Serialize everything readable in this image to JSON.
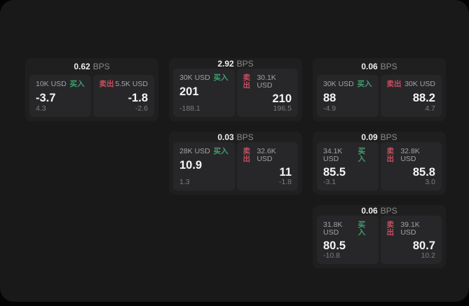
{
  "labels": {
    "bps_unit": "BPS",
    "buy": "买入",
    "sell": "卖出"
  },
  "colors": {
    "page_background": "#040404",
    "panel_background": "#19191a",
    "card_background": "#1f1f20",
    "tile_background": "#27272a",
    "buy_accent": "#3fa06d",
    "sell_accent": "#c94f5e",
    "price_text": "#f5f5f5",
    "muted_text": "#8a8a8a"
  },
  "cards": [
    {
      "bps": "0.62",
      "col": 1,
      "row": 1,
      "buy": {
        "notional": "10K USD",
        "price": "-3.7",
        "delta": "4.3"
      },
      "sell": {
        "notional": "5.5K USD",
        "price": "-1.8",
        "delta": "-2.6"
      }
    },
    {
      "bps": "2.92",
      "col": 2,
      "row": 1,
      "buy": {
        "notional": "30K USD",
        "price": "201",
        "delta": "-188.1"
      },
      "sell": {
        "notional": "30.1K USD",
        "price": "210",
        "delta": "196.5"
      }
    },
    {
      "bps": "0.06",
      "col": 3,
      "row": 1,
      "buy": {
        "notional": "30K USD",
        "price": "88",
        "delta": "-4.9"
      },
      "sell": {
        "notional": "30K USD",
        "price": "88.2",
        "delta": "4.7"
      }
    },
    {
      "bps": "0.03",
      "col": 2,
      "row": 2,
      "buy": {
        "notional": "28K USD",
        "price": "10.9",
        "delta": "1.3"
      },
      "sell": {
        "notional": "32.6K USD",
        "price": "11",
        "delta": "-1.8"
      }
    },
    {
      "bps": "0.09",
      "col": 3,
      "row": 2,
      "buy": {
        "notional": "34.1K USD",
        "price": "85.5",
        "delta": "-3.1"
      },
      "sell": {
        "notional": "32.8K USD",
        "price": "85.8",
        "delta": "3.0"
      }
    },
    {
      "bps": "0.06",
      "col": 3,
      "row": 3,
      "buy": {
        "notional": "31.8K USD",
        "price": "80.5",
        "delta": "-10.8"
      },
      "sell": {
        "notional": "39.1K USD",
        "price": "80.7",
        "delta": "10.2"
      }
    }
  ]
}
